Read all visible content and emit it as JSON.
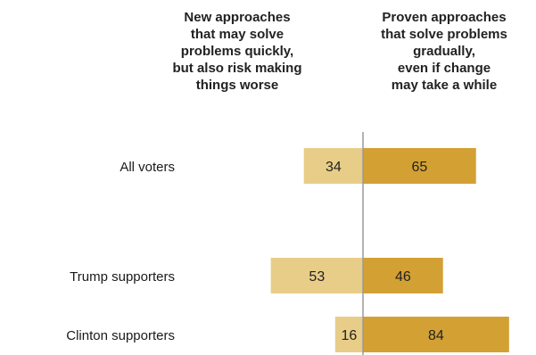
{
  "chart_data": {
    "type": "bar",
    "orientation": "horizontal-diverging",
    "column_headers": {
      "left": "New approaches\nthat may solve\nproblems quickly,\nbut also risk making\nthings worse",
      "right": "Proven approaches\nthat solve problems\ngradually,\neven if change\nmay take a while"
    },
    "categories": [
      "All voters",
      "Trump supporters",
      "Clinton supporters"
    ],
    "series": [
      {
        "name": "New approaches that may solve problems quickly, but also risk making things worse",
        "side": "left",
        "values": [
          34,
          53,
          16
        ],
        "color": "#e8cd88"
      },
      {
        "name": "Proven approaches that solve problems gradually, even if change may take a while",
        "side": "right",
        "values": [
          65,
          46,
          84
        ],
        "color": "#d3a033"
      }
    ],
    "xlim": [
      0,
      100
    ],
    "grid": false,
    "legend": "none",
    "center_line_color": "#9a9a9a"
  }
}
